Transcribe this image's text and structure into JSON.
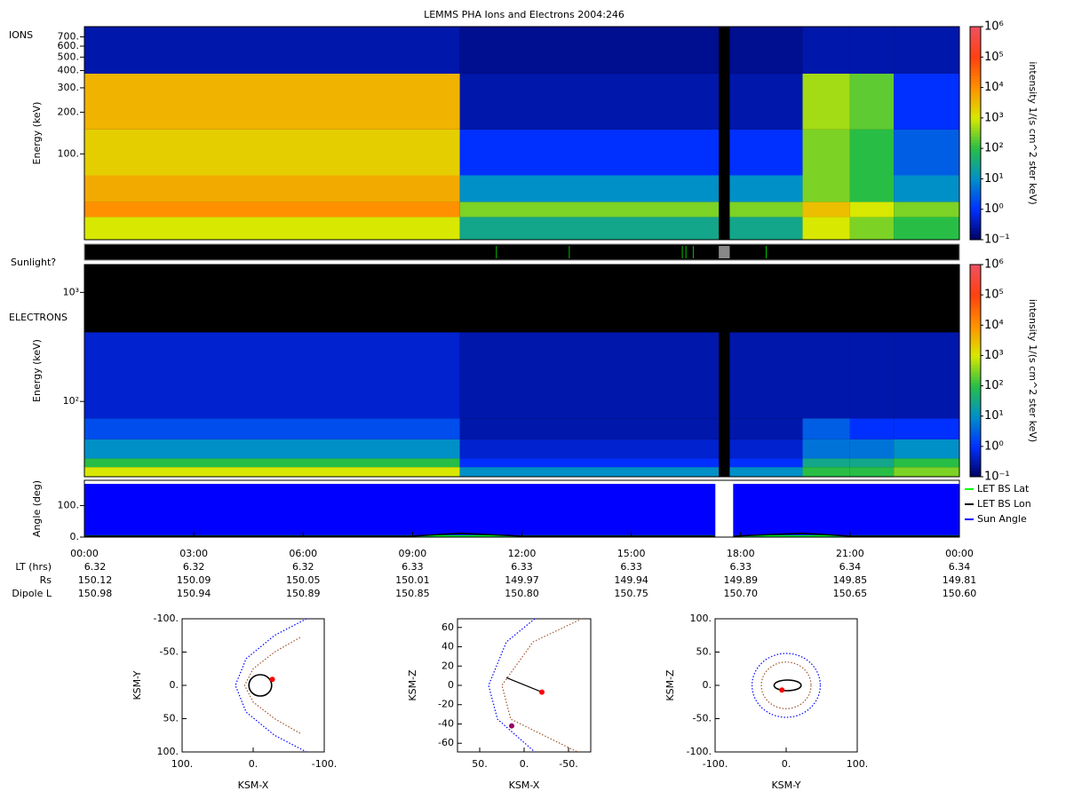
{
  "title": "LEMMS PHA Ions and Electrons  2004:246",
  "time_axis": {
    "xlim": [
      0,
      24
    ],
    "xticks": [
      {
        "value": 0,
        "label": "00:00"
      },
      {
        "value": 3,
        "label": "03:00"
      },
      {
        "value": 6,
        "label": "06:00"
      },
      {
        "value": 9,
        "label": "09:00"
      },
      {
        "value": 12,
        "label": "12:00"
      },
      {
        "value": 15,
        "label": "15:00"
      },
      {
        "value": 18,
        "label": "18:00"
      },
      {
        "value": 21,
        "label": "21:00"
      },
      {
        "value": 24,
        "label": "00:00"
      }
    ],
    "rows": [
      {
        "label": "LT (hrs)",
        "values": [
          "6.32",
          "6.32",
          "6.32",
          "6.33",
          "6.33",
          "6.33",
          "6.33",
          "6.34",
          "6.34"
        ]
      },
      {
        "label": "Rs",
        "values": [
          "150.12",
          "150.09",
          "150.05",
          "150.01",
          "149.97",
          "149.94",
          "149.89",
          "149.85",
          "149.81"
        ]
      },
      {
        "label": "Dipole L",
        "values": [
          "150.98",
          "150.94",
          "150.89",
          "150.85",
          "150.80",
          "150.75",
          "150.70",
          "150.65",
          "150.60"
        ]
      }
    ]
  },
  "chart_data": [
    {
      "type": "heatmap",
      "label": "IONS",
      "ylabel": "Energy (keV)",
      "log_y": true,
      "ylim": [
        24,
        830
      ],
      "yticks": [
        {
          "value": 100,
          "label": "100."
        },
        {
          "value": 200,
          "label": "200."
        },
        {
          "value": 300,
          "label": "300."
        },
        {
          "value": 400,
          "label": "400."
        },
        {
          "value": 500,
          "label": "500."
        },
        {
          "value": 600,
          "label": "600."
        },
        {
          "value": 700,
          "label": "700."
        }
      ],
      "x_edges": [
        0,
        10.3,
        17.4,
        17.7,
        19.7,
        21,
        22.2,
        24
      ],
      "y_edges": [
        24,
        35,
        45,
        70,
        150,
        380,
        830
      ],
      "z": [
        [
          1000,
          30,
          null,
          30,
          1000,
          300,
          100
        ],
        [
          10000,
          300,
          null,
          300,
          3000,
          1000,
          300
        ],
        [
          5000,
          10,
          null,
          10,
          300,
          100,
          10
        ],
        [
          2000,
          1,
          null,
          1,
          300,
          100,
          3
        ],
        [
          4000,
          0.3,
          null,
          0.3,
          500,
          200,
          1
        ],
        [
          0.3,
          0.2,
          null,
          0.2,
          0.3,
          0.3,
          0.3
        ]
      ],
      "colorbar": {
        "label": "intensity 1/(s cm^2 ster keV)",
        "lim": [
          0.1,
          1000000
        ],
        "ticks": [
          {
            "value": 0.1,
            "label": "10⁻¹"
          },
          {
            "value": 1,
            "label": "10⁰"
          },
          {
            "value": 10,
            "label": "10¹"
          },
          {
            "value": 100,
            "label": "10²"
          },
          {
            "value": 1000,
            "label": "10³"
          },
          {
            "value": 10000,
            "label": "10⁴"
          },
          {
            "value": 100000,
            "label": "10⁵"
          },
          {
            "value": 1000000,
            "label": "10⁶"
          }
        ]
      }
    },
    {
      "type": "event",
      "label": "Sunlight?",
      "color": "#00c000",
      "x": [
        11.3,
        13.3,
        16.4,
        16.5,
        16.7,
        18.7
      ],
      "gap_color": "#888888",
      "gap_x": [
        17.4,
        17.7
      ]
    },
    {
      "type": "heatmap",
      "label": "ELECTRONS",
      "ylabel": "Energy (keV)",
      "log_y": true,
      "ylim": [
        20.4,
        1800
      ],
      "yticks": [
        {
          "value": 100,
          "label": "10²"
        },
        {
          "value": 1000,
          "label": "10³"
        }
      ],
      "x_edges": [
        0,
        10.3,
        17.4,
        17.7,
        19.7,
        21,
        22.2,
        24
      ],
      "y_edges": [
        20.4,
        25,
        30,
        45,
        70,
        430,
        1800
      ],
      "z": [
        [
          1000,
          10,
          null,
          10,
          100,
          100,
          300
        ],
        [
          100,
          1,
          null,
          1,
          30,
          30,
          100
        ],
        [
          10,
          0.5,
          null,
          0.5,
          5,
          5,
          10
        ],
        [
          2,
          0.3,
          null,
          0.3,
          3,
          1,
          1
        ],
        [
          0.5,
          0.3,
          null,
          0.3,
          0.3,
          0.3,
          0.3
        ],
        [
          null,
          null,
          null,
          null,
          null,
          null,
          null
        ]
      ],
      "colorbar": {
        "label": "intensity 1/(s cm^2 ster keV)",
        "lim": [
          0.1,
          1000000
        ],
        "ticks": [
          {
            "value": 0.1,
            "label": "10⁻¹"
          },
          {
            "value": 1,
            "label": "10⁰"
          },
          {
            "value": 10,
            "label": "10¹"
          },
          {
            "value": 100,
            "label": "10²"
          },
          {
            "value": 1000,
            "label": "10³"
          },
          {
            "value": 10000,
            "label": "10⁴"
          },
          {
            "value": 100000,
            "label": "10⁵"
          },
          {
            "value": 1000000,
            "label": "10⁶"
          }
        ]
      }
    },
    {
      "type": "line",
      "ylabel": "Angle (deg)",
      "ylim": [
        0,
        180
      ],
      "yticks": [
        {
          "value": 0,
          "label": "0."
        },
        {
          "value": 100,
          "label": "100."
        }
      ],
      "x": [
        0,
        3,
        6,
        9,
        10.3,
        12,
        15,
        17.3,
        17.5,
        17.8,
        19.7,
        21,
        24
      ],
      "series": [
        {
          "name": "LET BS Lat",
          "color": "#00ff00",
          "style": "line",
          "values": [
            4,
            4,
            4,
            4,
            4,
            4,
            4,
            4,
            null,
            4,
            4,
            4,
            4
          ]
        },
        {
          "name": "LET BS Lon",
          "color": "#000000",
          "style": "line",
          "values": [
            3,
            3,
            3,
            3,
            12,
            3,
            3,
            3,
            null,
            3,
            12,
            3,
            3
          ]
        },
        {
          "name": "Sun Angle",
          "color": "#0000ff",
          "style": "area",
          "values": [
            168,
            168,
            168,
            168,
            168,
            168,
            168,
            168,
            null,
            168,
            168,
            168,
            168
          ]
        }
      ]
    },
    {
      "type": "orbit",
      "xlabel": "KSM-X",
      "ylabel": "KSM-Y",
      "xlim": [
        100,
        -100
      ],
      "ylim": [
        100,
        -100
      ],
      "xticks": [
        {
          "value": 100,
          "label": "100."
        },
        {
          "value": 0,
          "label": "0."
        },
        {
          "value": -100,
          "label": "-100."
        }
      ],
      "yticks": [
        {
          "value": -100,
          "label": "-100."
        },
        {
          "value": -50,
          "label": "-50."
        },
        {
          "value": 0,
          "label": "0."
        },
        {
          "value": 50,
          "label": "50."
        },
        {
          "value": 100,
          "label": "100."
        }
      ],
      "series": [
        {
          "color": "#0000ff",
          "style": "dotted",
          "x": [
            -75,
            -30,
            10,
            25,
            10,
            -30,
            -75
          ],
          "y": [
            -100,
            -75,
            -40,
            0,
            40,
            75,
            100
          ]
        },
        {
          "color": "#a0522d",
          "style": "dotted",
          "x": [
            -66,
            -30,
            0,
            12,
            0,
            -30,
            -66
          ],
          "y": [
            -72,
            -50,
            -25,
            0,
            25,
            50,
            72
          ]
        }
      ],
      "shapes": [
        {
          "color": "#000000",
          "style": "solid",
          "cx": -10,
          "cy": 0,
          "rx": 16,
          "ry": 16
        }
      ],
      "markers": [
        {
          "color": "#ff0000",
          "x": -27,
          "y": -9
        }
      ]
    },
    {
      "type": "orbit",
      "xlabel": "KSM-X",
      "ylabel": "KSM-Z",
      "xlim": [
        75,
        -75
      ],
      "ylim": [
        -69,
        69
      ],
      "xticks": [
        {
          "value": 50,
          "label": "50."
        },
        {
          "value": 0,
          "label": "0."
        },
        {
          "value": -50,
          "label": "-50."
        }
      ],
      "yticks": [
        -60,
        -40,
        -20,
        0,
        20,
        40,
        60
      ],
      "series": [
        {
          "color": "#0000ff",
          "style": "dotted",
          "x": [
            -12,
            20,
            40,
            30,
            -12
          ],
          "y": [
            69,
            45,
            0,
            -35,
            -69
          ]
        },
        {
          "color": "#a0522d",
          "style": "dotted",
          "x": [
            -65,
            -10,
            25,
            15,
            -60
          ],
          "y": [
            69,
            45,
            0,
            -35,
            -69
          ]
        },
        {
          "color": "#000000",
          "style": "solid",
          "x": [
            20,
            -20
          ],
          "y": [
            8,
            -7
          ]
        }
      ],
      "shapes": [],
      "markers": [
        {
          "color": "#ff0000",
          "x": -20,
          "y": -7
        },
        {
          "color": "#990066",
          "x": 14,
          "y": -42
        }
      ]
    },
    {
      "type": "orbit",
      "xlabel": "KSM-Y",
      "ylabel": "KSM-Z",
      "xlim": [
        -100,
        100
      ],
      "ylim": [
        -100,
        100
      ],
      "xticks": [
        {
          "value": -100,
          "label": "-100."
        },
        {
          "value": 0,
          "label": "0."
        },
        {
          "value": 100,
          "label": "100."
        }
      ],
      "yticks": [
        {
          "value": -100,
          "label": "-100."
        },
        {
          "value": -50,
          "label": "-50."
        },
        {
          "value": 0,
          "label": "0."
        },
        {
          "value": 50,
          "label": "50."
        },
        {
          "value": 100,
          "label": "100."
        }
      ],
      "series": [],
      "shapes": [
        {
          "color": "#0000ff",
          "style": "dotted",
          "cx": 0,
          "cy": 0,
          "rx": 48,
          "ry": 48
        },
        {
          "color": "#a0522d",
          "style": "dotted",
          "cx": 0,
          "cy": 0,
          "rx": 35,
          "ry": 35
        },
        {
          "color": "#000000",
          "style": "solid",
          "cx": 2,
          "cy": 0,
          "rx": 19,
          "ry": 8
        }
      ],
      "markers": [
        {
          "color": "#ff0000",
          "x": -6,
          "y": -7
        }
      ]
    }
  ]
}
